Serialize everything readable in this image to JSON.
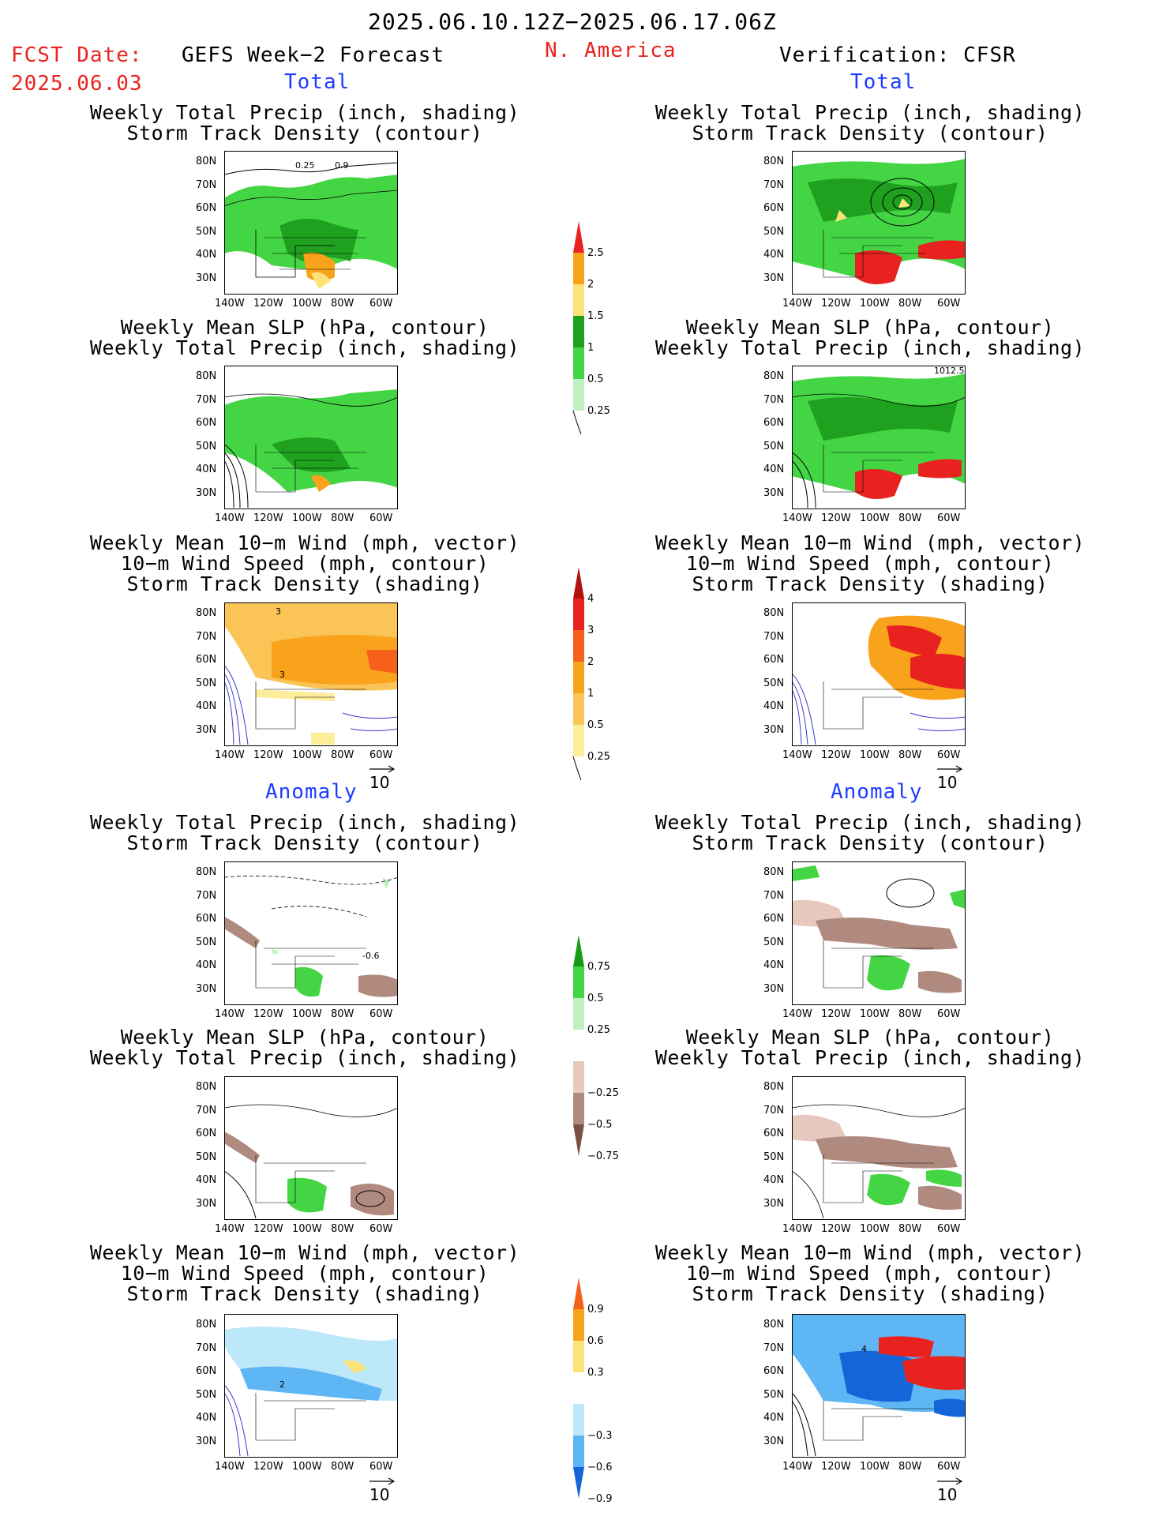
{
  "header": {
    "period": "2025.06.10.12Z−2025.06.17.06Z",
    "fcst_label": "FCST Date:",
    "fcst_date": "2025.06.03",
    "left_title": "GEFS Week−2 Forecast",
    "region": "N. America",
    "right_title": "Verification: CFSR"
  },
  "sections": {
    "total": "Total",
    "anomaly": "Anomaly"
  },
  "panels": {
    "precip_storm": [
      "Weekly Total Precip (inch, shading)",
      "Storm Track Density (contour)"
    ],
    "slp_precip": [
      "Weekly Mean SLP (hPa, contour)",
      "Weekly Total Precip (inch, shading)"
    ],
    "wind_storm": [
      "Weekly Mean 10−m Wind (mph, vector)",
      "10−m Wind Speed (mph, contour)",
      "Storm Track Density (shading)"
    ]
  },
  "axes": {
    "lat_labels": [
      "80N",
      "70N",
      "60N",
      "50N",
      "40N",
      "30N"
    ],
    "lon_labels": [
      "140W",
      "120W",
      "100W",
      "80W",
      "60W"
    ]
  },
  "vector_ref": "10",
  "map_annotations": {
    "fc_total_track": "0.25",
    "fc_total_track2": "0.9",
    "obs_slp": "1012.5",
    "fc_wind_3a": "3",
    "fc_wind_3b": "3",
    "fc_anom_precip": "-0.6",
    "obs_wind_anom": "4",
    "fc_wind_anom": "2"
  },
  "colorbars": {
    "total_precip": {
      "labels": [
        "2.5",
        "2",
        "1.5",
        "1",
        "0.5",
        "0.25"
      ],
      "colors": [
        "#e8231f",
        "#f9a21b",
        "#fde27a",
        "#1fa01f",
        "#44d544",
        "#bff0bf"
      ]
    },
    "total_track": {
      "labels": [
        "4",
        "3",
        "2",
        "1",
        "0.5",
        "0.25"
      ],
      "colors": [
        "#b0120e",
        "#e8231f",
        "#f6601b",
        "#f9a21b",
        "#fbc457",
        "#fdec9a"
      ]
    },
    "anom_precip": {
      "labels": [
        "0.75",
        "0.5",
        "0.25",
        "−0.25",
        "−0.5",
        "−0.75"
      ],
      "colors_pos": [
        "#169b16",
        "#44d544",
        "#bff0bf"
      ],
      "colors_neg": [
        "#e6c8bf",
        "#b08a7e",
        "#7a5046"
      ]
    },
    "anom_track": {
      "labels": [
        "0.9",
        "0.6",
        "0.3",
        "−0.3",
        "−0.6",
        "−0.9"
      ],
      "colors_pos": [
        "#f6601b",
        "#f9a21b",
        "#fde27a"
      ],
      "colors_neg": [
        "#bde8f9",
        "#5fb6f4",
        "#1565d8"
      ]
    }
  },
  "colors": {
    "land": "#ffffff",
    "precip_green": "#44d544",
    "precip_dark": "#1fa01f",
    "precip_light": "#bff0bf",
    "orange": "#f9a21b",
    "red": "#e8231f",
    "blue": "#1565d8",
    "light_blue": "#5fb6f4",
    "brown": "#b08a7e",
    "vector": "#3a3acf"
  }
}
